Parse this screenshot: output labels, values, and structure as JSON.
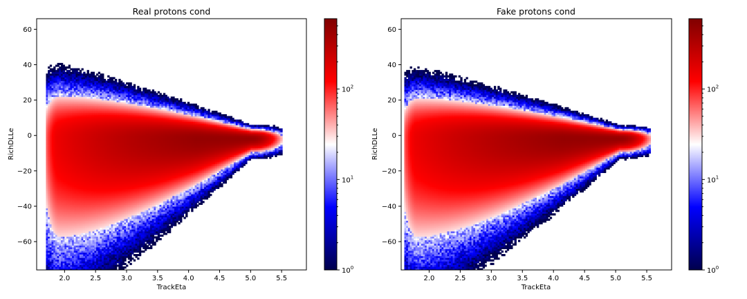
{
  "chart_data": [
    {
      "type": "heatmap",
      "title": "Real protons cond",
      "xlabel": "TrackEta",
      "ylabel": "RichDLLe",
      "xlim": [
        1.55,
        5.9
      ],
      "ylim": [
        -76,
        66
      ],
      "xticks": [
        "2.0",
        "2.5",
        "3.0",
        "3.5",
        "4.0",
        "4.5",
        "5.0",
        "5.5"
      ],
      "yticks": [
        "-60",
        "-40",
        "-20",
        "0",
        "20",
        "40",
        "60"
      ],
      "colorbar": {
        "scale": "log",
        "cmap": "seismic",
        "range": [
          1,
          600
        ],
        "ticks": [
          "10",
          "10",
          "10"
        ],
        "tick_exponents": [
          "0",
          "1",
          "2"
        ]
      },
      "density_model": {
        "x_start": 1.9,
        "x_end": 5.0,
        "mid_x": 3.5,
        "mid_y": -2,
        "upper_halfwidth_at_start": 18,
        "lower_halfwidth_at_start": 44,
        "peak_counts": 450
      }
    },
    {
      "type": "heatmap",
      "title": "Fake protons cond",
      "xlabel": "TrackEta",
      "ylabel": "RichDLLe",
      "xlim": [
        1.55,
        5.9
      ],
      "ylim": [
        -76,
        66
      ],
      "xticks": [
        "2.0",
        "2.5",
        "3.0",
        "3.5",
        "4.0",
        "4.5",
        "5.0",
        "5.5"
      ],
      "yticks": [
        "-60",
        "-40",
        "-20",
        "0",
        "20",
        "40",
        "60"
      ],
      "colorbar": {
        "scale": "log",
        "cmap": "seismic",
        "range": [
          1,
          600
        ],
        "ticks": [
          "10",
          "10",
          "10"
        ],
        "tick_exponents": [
          "0",
          "1",
          "2"
        ]
      },
      "density_model": {
        "x_start": 1.8,
        "x_end": 5.05,
        "mid_x": 3.5,
        "mid_y": -2,
        "upper_halfwidth_at_start": 17,
        "lower_halfwidth_at_start": 44,
        "peak_counts": 450
      }
    }
  ]
}
